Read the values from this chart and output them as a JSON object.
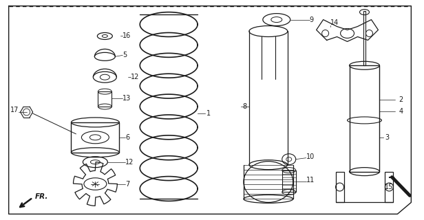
{
  "bg_color": "#ffffff",
  "line_color": "#1a1a1a",
  "fig_w": 6.16,
  "fig_h": 3.2,
  "dpi": 100
}
